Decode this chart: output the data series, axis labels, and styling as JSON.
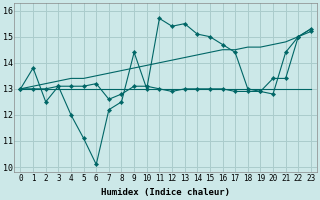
{
  "xlabel": "Humidex (Indice chaleur)",
  "xlim": [
    -0.5,
    23.5
  ],
  "ylim": [
    9.8,
    16.3
  ],
  "yticks": [
    10,
    11,
    12,
    13,
    14,
    15,
    16
  ],
  "xticks": [
    0,
    1,
    2,
    3,
    4,
    5,
    6,
    7,
    8,
    9,
    10,
    11,
    12,
    13,
    14,
    15,
    16,
    17,
    18,
    19,
    20,
    21,
    22,
    23
  ],
  "bg_color": "#cce8e8",
  "grid_color": "#aacccc",
  "line_color": "#006666",
  "figsize": [
    3.2,
    2.0
  ],
  "dpi": 100,
  "series": {
    "jagged_with_markers": [
      13.0,
      13.8,
      12.5,
      13.1,
      12.0,
      11.1,
      10.1,
      12.2,
      12.5,
      14.4,
      13.0,
      15.7,
      15.4,
      15.5,
      15.1,
      15.0,
      14.7,
      14.4,
      13.0,
      12.9,
      12.8,
      14.4,
      15.0,
      15.2
    ],
    "rising_with_markers": [
      13.0,
      13.0,
      13.0,
      13.1,
      13.1,
      13.1,
      13.2,
      12.6,
      12.8,
      13.1,
      13.1,
      13.0,
      12.9,
      13.0,
      13.0,
      13.0,
      13.0,
      12.9,
      12.9,
      12.9,
      13.4,
      13.4,
      15.0,
      15.3
    ],
    "linear_rising": [
      13.0,
      13.1,
      13.2,
      13.3,
      13.4,
      13.4,
      13.5,
      13.6,
      13.7,
      13.8,
      13.9,
      14.0,
      14.1,
      14.2,
      14.3,
      14.4,
      14.5,
      14.5,
      14.6,
      14.6,
      14.7,
      14.8,
      15.0,
      15.3
    ],
    "flat_line": [
      13.0,
      13.0,
      13.0,
      13.0,
      13.0,
      13.0,
      13.0,
      13.0,
      13.0,
      13.0,
      13.0,
      13.0,
      13.0,
      13.0,
      13.0,
      13.0,
      13.0,
      13.0,
      13.0,
      13.0,
      13.0,
      13.0,
      13.0,
      13.0
    ]
  }
}
